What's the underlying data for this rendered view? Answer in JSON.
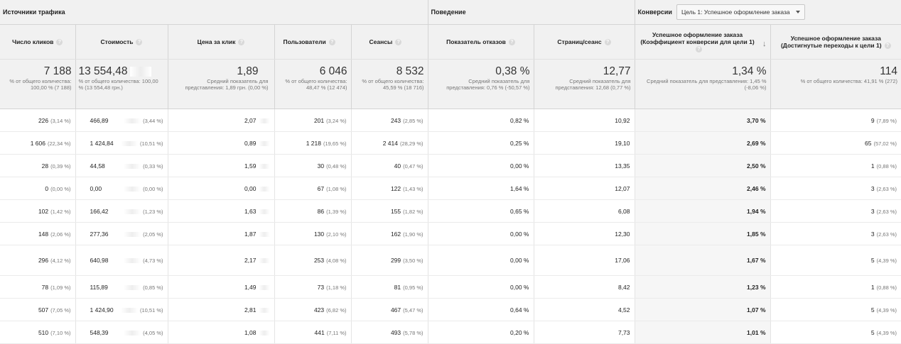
{
  "groups": {
    "traffic": "Источники трафика",
    "behavior": "Поведение",
    "conversions": "Конверсии",
    "goal_select": "Цель 1: Успешное оформление заказа"
  },
  "columns": [
    "Число кликов",
    "Стоимость",
    "Цена за клик",
    "Пользователи",
    "Сеансы",
    "Показатель отказов",
    "Страниц/сеанс",
    "Успешное оформление заказа (Коэффициент конверсии для цели 1)",
    "Успешное оформление заказа (Достигнутые переходы к цели 1)"
  ],
  "summary": [
    {
      "value": "7 188",
      "sub": "% от общего количества: 100,00 % (7 188)"
    },
    {
      "value": "13 554,48",
      "sub": "% от общего количества: 100,00 % (13 554,48 грн.)"
    },
    {
      "value": "1,89",
      "sub": "Средний показатель для представления: 1,89 грн. (0,00 %)"
    },
    {
      "value": "6 046",
      "sub": "% от общего количества: 48,47 % (12 474)"
    },
    {
      "value": "8 532",
      "sub": "% от общего количества: 45,59 % (18 716)"
    },
    {
      "value": "0,38 %",
      "sub": "Средний показатель для представления: 0,76 % (-50,57 %)"
    },
    {
      "value": "12,77",
      "sub": "Средний показатель для представления: 12,68 (0,77 %)"
    },
    {
      "value": "1,34 %",
      "sub": "Средний показатель для представления: 1,45 % (-8,06 %)"
    },
    {
      "value": "114",
      "sub": "% от общего количества: 41,91 % (272)"
    }
  ],
  "rows": [
    {
      "clicks": "226",
      "clicks_pct": "(3,14 %)",
      "cost": "466,89",
      "cost_pct": "(3,44 %)",
      "cpc": "2,07",
      "users": "201",
      "users_pct": "(3,24 %)",
      "sessions": "243",
      "sessions_pct": "(2,85 %)",
      "bounce": "0,82 %",
      "pages": "10,92",
      "conv_rate": "3,70 %",
      "conv": "9",
      "conv_pct": "(7,89 %)"
    },
    {
      "clicks": "1 606",
      "clicks_pct": "(22,34 %)",
      "cost": "1 424,84",
      "cost_pct": "(10,51 %)",
      "cpc": "0,89",
      "users": "1 218",
      "users_pct": "(19,65 %)",
      "sessions": "2 414",
      "sessions_pct": "(28,29 %)",
      "bounce": "0,25 %",
      "pages": "19,10",
      "conv_rate": "2,69 %",
      "conv": "65",
      "conv_pct": "(57,02 %)"
    },
    {
      "clicks": "28",
      "clicks_pct": "(0,39 %)",
      "cost": "44,58",
      "cost_pct": "(0,33 %)",
      "cpc": "1,59",
      "users": "30",
      "users_pct": "(0,48 %)",
      "sessions": "40",
      "sessions_pct": "(0,47 %)",
      "bounce": "0,00 %",
      "pages": "13,35",
      "conv_rate": "2,50 %",
      "conv": "1",
      "conv_pct": "(0,88 %)"
    },
    {
      "clicks": "0",
      "clicks_pct": "(0,00 %)",
      "cost": "0,00",
      "cost_pct": "(0,00 %)",
      "cpc": "0,00",
      "users": "67",
      "users_pct": "(1,08 %)",
      "sessions": "122",
      "sessions_pct": "(1,43 %)",
      "bounce": "1,64 %",
      "pages": "12,07",
      "conv_rate": "2,46 %",
      "conv": "3",
      "conv_pct": "(2,63 %)"
    },
    {
      "clicks": "102",
      "clicks_pct": "(1,42 %)",
      "cost": "166,42",
      "cost_pct": "(1,23 %)",
      "cpc": "1,63",
      "users": "86",
      "users_pct": "(1,39 %)",
      "sessions": "155",
      "sessions_pct": "(1,82 %)",
      "bounce": "0,65 %",
      "pages": "6,08",
      "conv_rate": "1,94 %",
      "conv": "3",
      "conv_pct": "(2,63 %)"
    },
    {
      "clicks": "148",
      "clicks_pct": "(2,06 %)",
      "cost": "277,36",
      "cost_pct": "(2,05 %)",
      "cpc": "1,87",
      "users": "130",
      "users_pct": "(2,10 %)",
      "sessions": "162",
      "sessions_pct": "(1,90 %)",
      "bounce": "0,00 %",
      "pages": "12,30",
      "conv_rate": "1,85 %",
      "conv": "3",
      "conv_pct": "(2,63 %)"
    },
    {
      "clicks": "296",
      "clicks_pct": "(4,12 %)",
      "cost": "640,98",
      "cost_pct": "(4,73 %)",
      "cpc": "2,17",
      "users": "253",
      "users_pct": "(4,08 %)",
      "sessions": "299",
      "sessions_pct": "(3,50 %)",
      "bounce": "0,00 %",
      "pages": "17,06",
      "conv_rate": "1,67 %",
      "conv": "5",
      "conv_pct": "(4,39 %)"
    },
    {
      "clicks": "78",
      "clicks_pct": "(1,09 %)",
      "cost": "115,89",
      "cost_pct": "(0,85 %)",
      "cpc": "1,49",
      "users": "73",
      "users_pct": "(1,18 %)",
      "sessions": "81",
      "sessions_pct": "(0,95 %)",
      "bounce": "0,00 %",
      "pages": "8,42",
      "conv_rate": "1,23 %",
      "conv": "1",
      "conv_pct": "(0,88 %)"
    },
    {
      "clicks": "507",
      "clicks_pct": "(7,05 %)",
      "cost": "1 424,90",
      "cost_pct": "(10,51 %)",
      "cpc": "2,81",
      "users": "423",
      "users_pct": "(6,82 %)",
      "sessions": "467",
      "sessions_pct": "(5,47 %)",
      "bounce": "0,64 %",
      "pages": "4,52",
      "conv_rate": "1,07 %",
      "conv": "5",
      "conv_pct": "(4,39 %)"
    },
    {
      "clicks": "510",
      "clicks_pct": "(7,10 %)",
      "cost": "548,39",
      "cost_pct": "(4,05 %)",
      "cpc": "1,08",
      "users": "441",
      "users_pct": "(7,11 %)",
      "sessions": "493",
      "sessions_pct": "(5,78 %)",
      "bounce": "0,20 %",
      "pages": "7,73",
      "conv_rate": "1,01 %",
      "conv": "5",
      "conv_pct": "(4,39 %)"
    }
  ],
  "icons": {
    "help": "help-icon",
    "sort": "sort-desc-icon",
    "dropdown": "chevron-down-icon"
  },
  "colors": {
    "header_bg": "#f1f1f1",
    "border": "#d4d4d4",
    "highlight": "#f6f6f6"
  }
}
